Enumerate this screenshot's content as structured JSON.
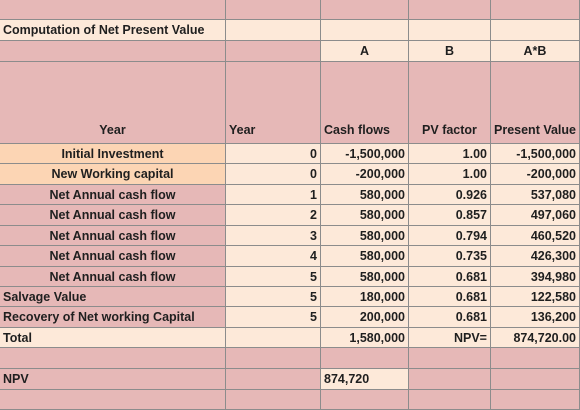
{
  "title": "Computation of Net Present Value",
  "column_letters": [
    "A",
    "B",
    "A*B"
  ],
  "header": [
    "Year",
    "Year",
    "Cash flows",
    "PV factor",
    "Present Value"
  ],
  "rows": [
    [
      "Initial Investment",
      "0",
      "-1,500,000",
      "1.00",
      "-1,500,000"
    ],
    [
      "New Working capital",
      "0",
      "-200,000",
      "1.00",
      "-200,000"
    ],
    [
      "Net Annual cash flow",
      "1",
      "580,000",
      "0.926",
      "537,080"
    ],
    [
      "Net Annual cash flow",
      "2",
      "580,000",
      "0.857",
      "497,060"
    ],
    [
      "Net Annual cash flow",
      "3",
      "580,000",
      "0.794",
      "460,520"
    ],
    [
      "Net Annual cash flow",
      "4",
      "580,000",
      "0.735",
      "426,300"
    ],
    [
      "Net Annual cash flow",
      "5",
      "580,000",
      "0.681",
      "394,980"
    ],
    [
      "Salvage Value",
      "5",
      "180,000",
      "0.681",
      "122,580"
    ],
    [
      "Recovery of Net working Capital",
      "5",
      "200,000",
      "0.681",
      "136,200"
    ],
    [
      "Total",
      null,
      "1,580,000",
      "NPV=",
      "874,720.00"
    ]
  ],
  "npv": {
    "label": "NPV",
    "value": "874,720"
  }
}
